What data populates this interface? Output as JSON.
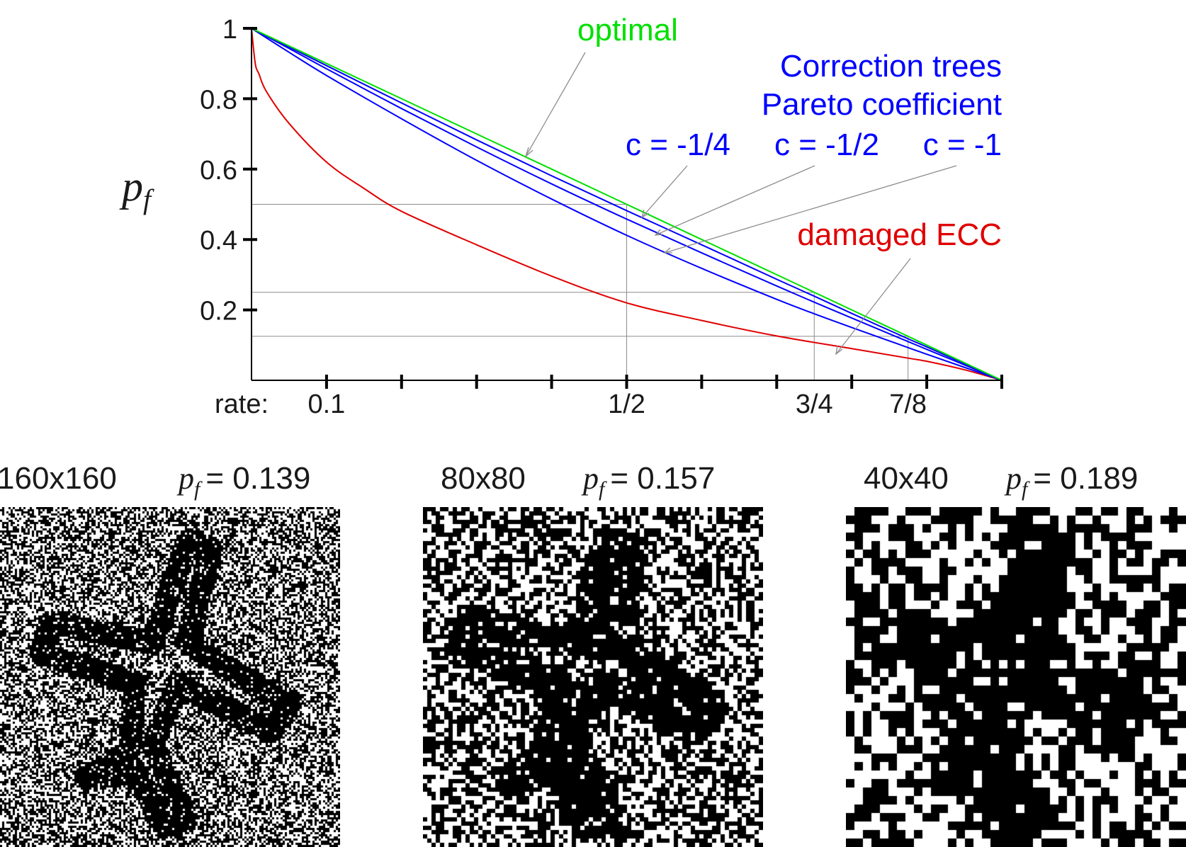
{
  "chart_data": {
    "type": "line",
    "title": "",
    "xlabel": "rate:",
    "ylabel": "p",
    "ylabel_sub": "f",
    "xlim": [
      0,
      1
    ],
    "ylim": [
      0,
      1
    ],
    "grid": false,
    "y_ticks": [
      {
        "value": 1,
        "label": "1"
      },
      {
        "value": 0.8,
        "label": "0.8"
      },
      {
        "value": 0.6,
        "label": "0.6"
      },
      {
        "value": 0.4,
        "label": "0.4"
      },
      {
        "value": 0.2,
        "label": "0.2"
      }
    ],
    "x_ticks": [
      0.1,
      0.2,
      0.3,
      0.4,
      0.5,
      0.6,
      0.7,
      0.8,
      0.9,
      1.0
    ],
    "x_tick_labels": [
      {
        "value": 0.1,
        "label": "0.1"
      },
      {
        "value": 0.5,
        "label": "1/2"
      },
      {
        "value": 0.75,
        "label": "3/4"
      },
      {
        "value": 0.875,
        "label": "7/8"
      }
    ],
    "series": [
      {
        "name": "optimal",
        "color": "#00e000",
        "x": [
          0,
          0.05,
          0.1,
          0.2,
          0.3,
          0.4,
          0.5,
          0.6,
          0.7,
          0.75,
          0.8,
          0.875,
          0.9,
          1.0
        ],
        "values": [
          1,
          0.95,
          0.9,
          0.8,
          0.7,
          0.6,
          0.5,
          0.4,
          0.3,
          0.25,
          0.2,
          0.125,
          0.1,
          0
        ]
      },
      {
        "name": "c = -1/4",
        "color": "#0000ff",
        "x": [
          0,
          0.05,
          0.1,
          0.2,
          0.3,
          0.4,
          0.5,
          0.6,
          0.7,
          0.75,
          0.8,
          0.875,
          0.9,
          1.0
        ],
        "values": [
          1,
          0.947,
          0.894,
          0.788,
          0.683,
          0.581,
          0.482,
          0.385,
          0.287,
          0.239,
          0.19,
          0.118,
          0.095,
          0
        ]
      },
      {
        "name": "c = -1/2",
        "color": "#0000ff",
        "x": [
          0,
          0.05,
          0.1,
          0.2,
          0.3,
          0.4,
          0.5,
          0.6,
          0.7,
          0.75,
          0.8,
          0.875,
          0.9,
          1.0
        ],
        "values": [
          1,
          0.943,
          0.885,
          0.772,
          0.663,
          0.558,
          0.458,
          0.362,
          0.268,
          0.222,
          0.177,
          0.11,
          0.088,
          0
        ]
      },
      {
        "name": "c = -1",
        "color": "#0000ff",
        "x": [
          0,
          0.05,
          0.1,
          0.2,
          0.3,
          0.4,
          0.5,
          0.6,
          0.7,
          0.75,
          0.8,
          0.875,
          0.9,
          1.0
        ],
        "values": [
          1,
          0.932,
          0.866,
          0.743,
          0.625,
          0.515,
          0.412,
          0.318,
          0.23,
          0.189,
          0.15,
          0.093,
          0.074,
          0
        ]
      },
      {
        "name": "damaged ECC",
        "color": "#e00000",
        "x": [
          0,
          0.005,
          0.01,
          0.02,
          0.05,
          0.1,
          0.15,
          0.2,
          0.3,
          0.4,
          0.5,
          0.6,
          0.7,
          0.8,
          0.875,
          0.9,
          0.95,
          1.0
        ],
        "values": [
          1,
          0.9,
          0.87,
          0.82,
          0.73,
          0.62,
          0.545,
          0.48,
          0.385,
          0.296,
          0.22,
          0.17,
          0.126,
          0.09,
          0.063,
          0.054,
          0.03,
          0
        ]
      }
    ],
    "reference_levels": [
      {
        "rate": 0.5,
        "p": 0.5
      },
      {
        "rate": 0.75,
        "p": 0.25
      },
      {
        "rate": 0.875,
        "p": 0.125
      }
    ],
    "annotations": {
      "optimal": "optimal",
      "ct_line1": "Correction trees",
      "ct_line2": "Pareto coefficient",
      "c1": "c = -1/4",
      "c2": "c = -1/2",
      "c3": "c = -1",
      "damaged": "damaged ECC"
    },
    "colors": {
      "optimal": "#00e000",
      "correction": "#0000ff",
      "damaged": "#e00000",
      "axis": "#000000",
      "guide": "#8c8c8c",
      "text": "#1a1a1a"
    }
  },
  "images": [
    {
      "size_label": "160x160",
      "pf_label": "p",
      "pf_sub": "f",
      "pf_value": "= 0.139",
      "grid": 160,
      "noise": 0.139
    },
    {
      "size_label": "80x80",
      "pf_label": "p",
      "pf_sub": "f",
      "pf_value": "= 0.157",
      "grid": 80,
      "noise": 0.157
    },
    {
      "size_label": "40x40",
      "pf_label": "p",
      "pf_sub": "f",
      "pf_value": "= 0.189",
      "grid": 40,
      "noise": 0.189
    }
  ]
}
